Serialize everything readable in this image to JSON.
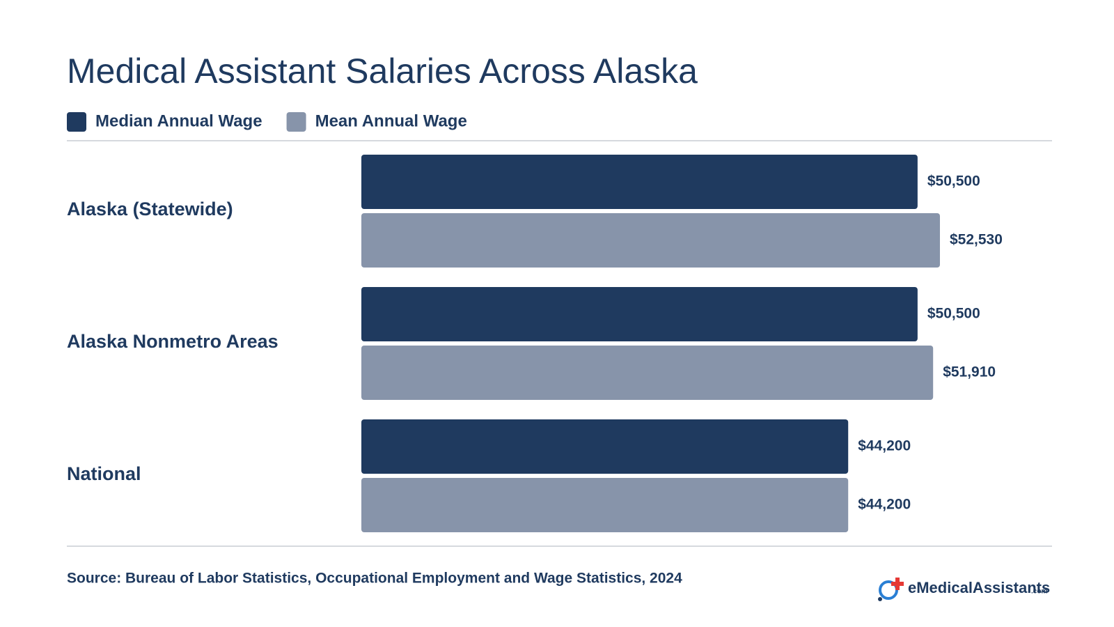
{
  "chart_data": {
    "type": "hbar",
    "title": "Medical Assistant Salaries Across Alaska",
    "categories": [
      "Alaska (Statewide)",
      "Alaska Nonmetro Areas",
      "National"
    ],
    "series": [
      {
        "name": "Median Annual Wage",
        "color": "#1f3a5f",
        "values": [
          50500,
          50500,
          44200
        ],
        "value_labels": [
          "$50,500",
          "$50,500",
          "$44,200"
        ]
      },
      {
        "name": "Mean Annual Wage",
        "color": "#8794aa",
        "values": [
          52530,
          51910,
          44200
        ],
        "value_labels": [
          "$52,530",
          "$51,910",
          "$44,200"
        ]
      }
    ],
    "source": "Source: Bureau of Labor Statistics, Occupational Employment and Wage Statistics, 2024",
    "brand": "eMedicalAssistants",
    "brand_suffix": ".com"
  }
}
